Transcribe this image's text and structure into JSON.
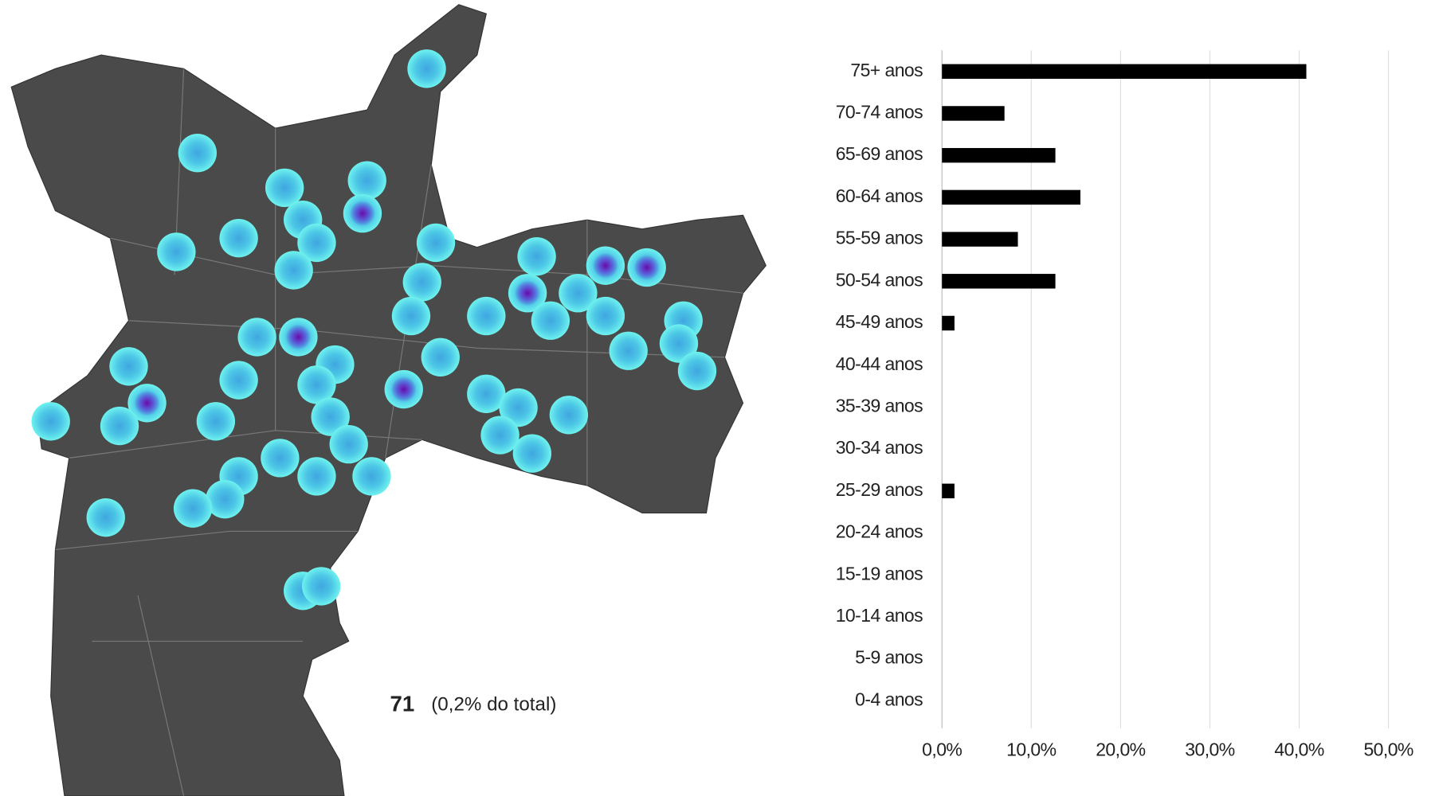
{
  "chart_data": {
    "type": "bar",
    "orientation": "horizontal",
    "categories": [
      "75+ anos",
      "70-74 anos",
      "65-69 anos",
      "60-64 anos",
      "55-59 anos",
      "50-54 anos",
      "45-49 anos",
      "40-44 anos",
      "35-39 anos",
      "30-34 anos",
      "25-29 anos",
      "20-24 anos",
      "15-19 anos",
      "10-14 anos",
      "5-9 anos",
      "0-4 anos"
    ],
    "values": [
      40.8,
      7.0,
      12.7,
      15.5,
      8.5,
      12.7,
      1.4,
      0,
      0,
      0,
      1.4,
      0,
      0,
      0,
      0,
      0
    ],
    "color": "#000000",
    "xlim": [
      0,
      50
    ],
    "xticks": [
      {
        "value": 0,
        "label": "0,0%"
      },
      {
        "value": 10,
        "label": "10,0%"
      },
      {
        "value": 20,
        "label": "20,0%"
      },
      {
        "value": 30,
        "label": "30,0%"
      },
      {
        "value": 40,
        "label": "40,0%"
      },
      {
        "value": 50,
        "label": "50,0%"
      }
    ],
    "grid": true
  },
  "map": {
    "count": 71,
    "share": "(0,2% do total)"
  }
}
